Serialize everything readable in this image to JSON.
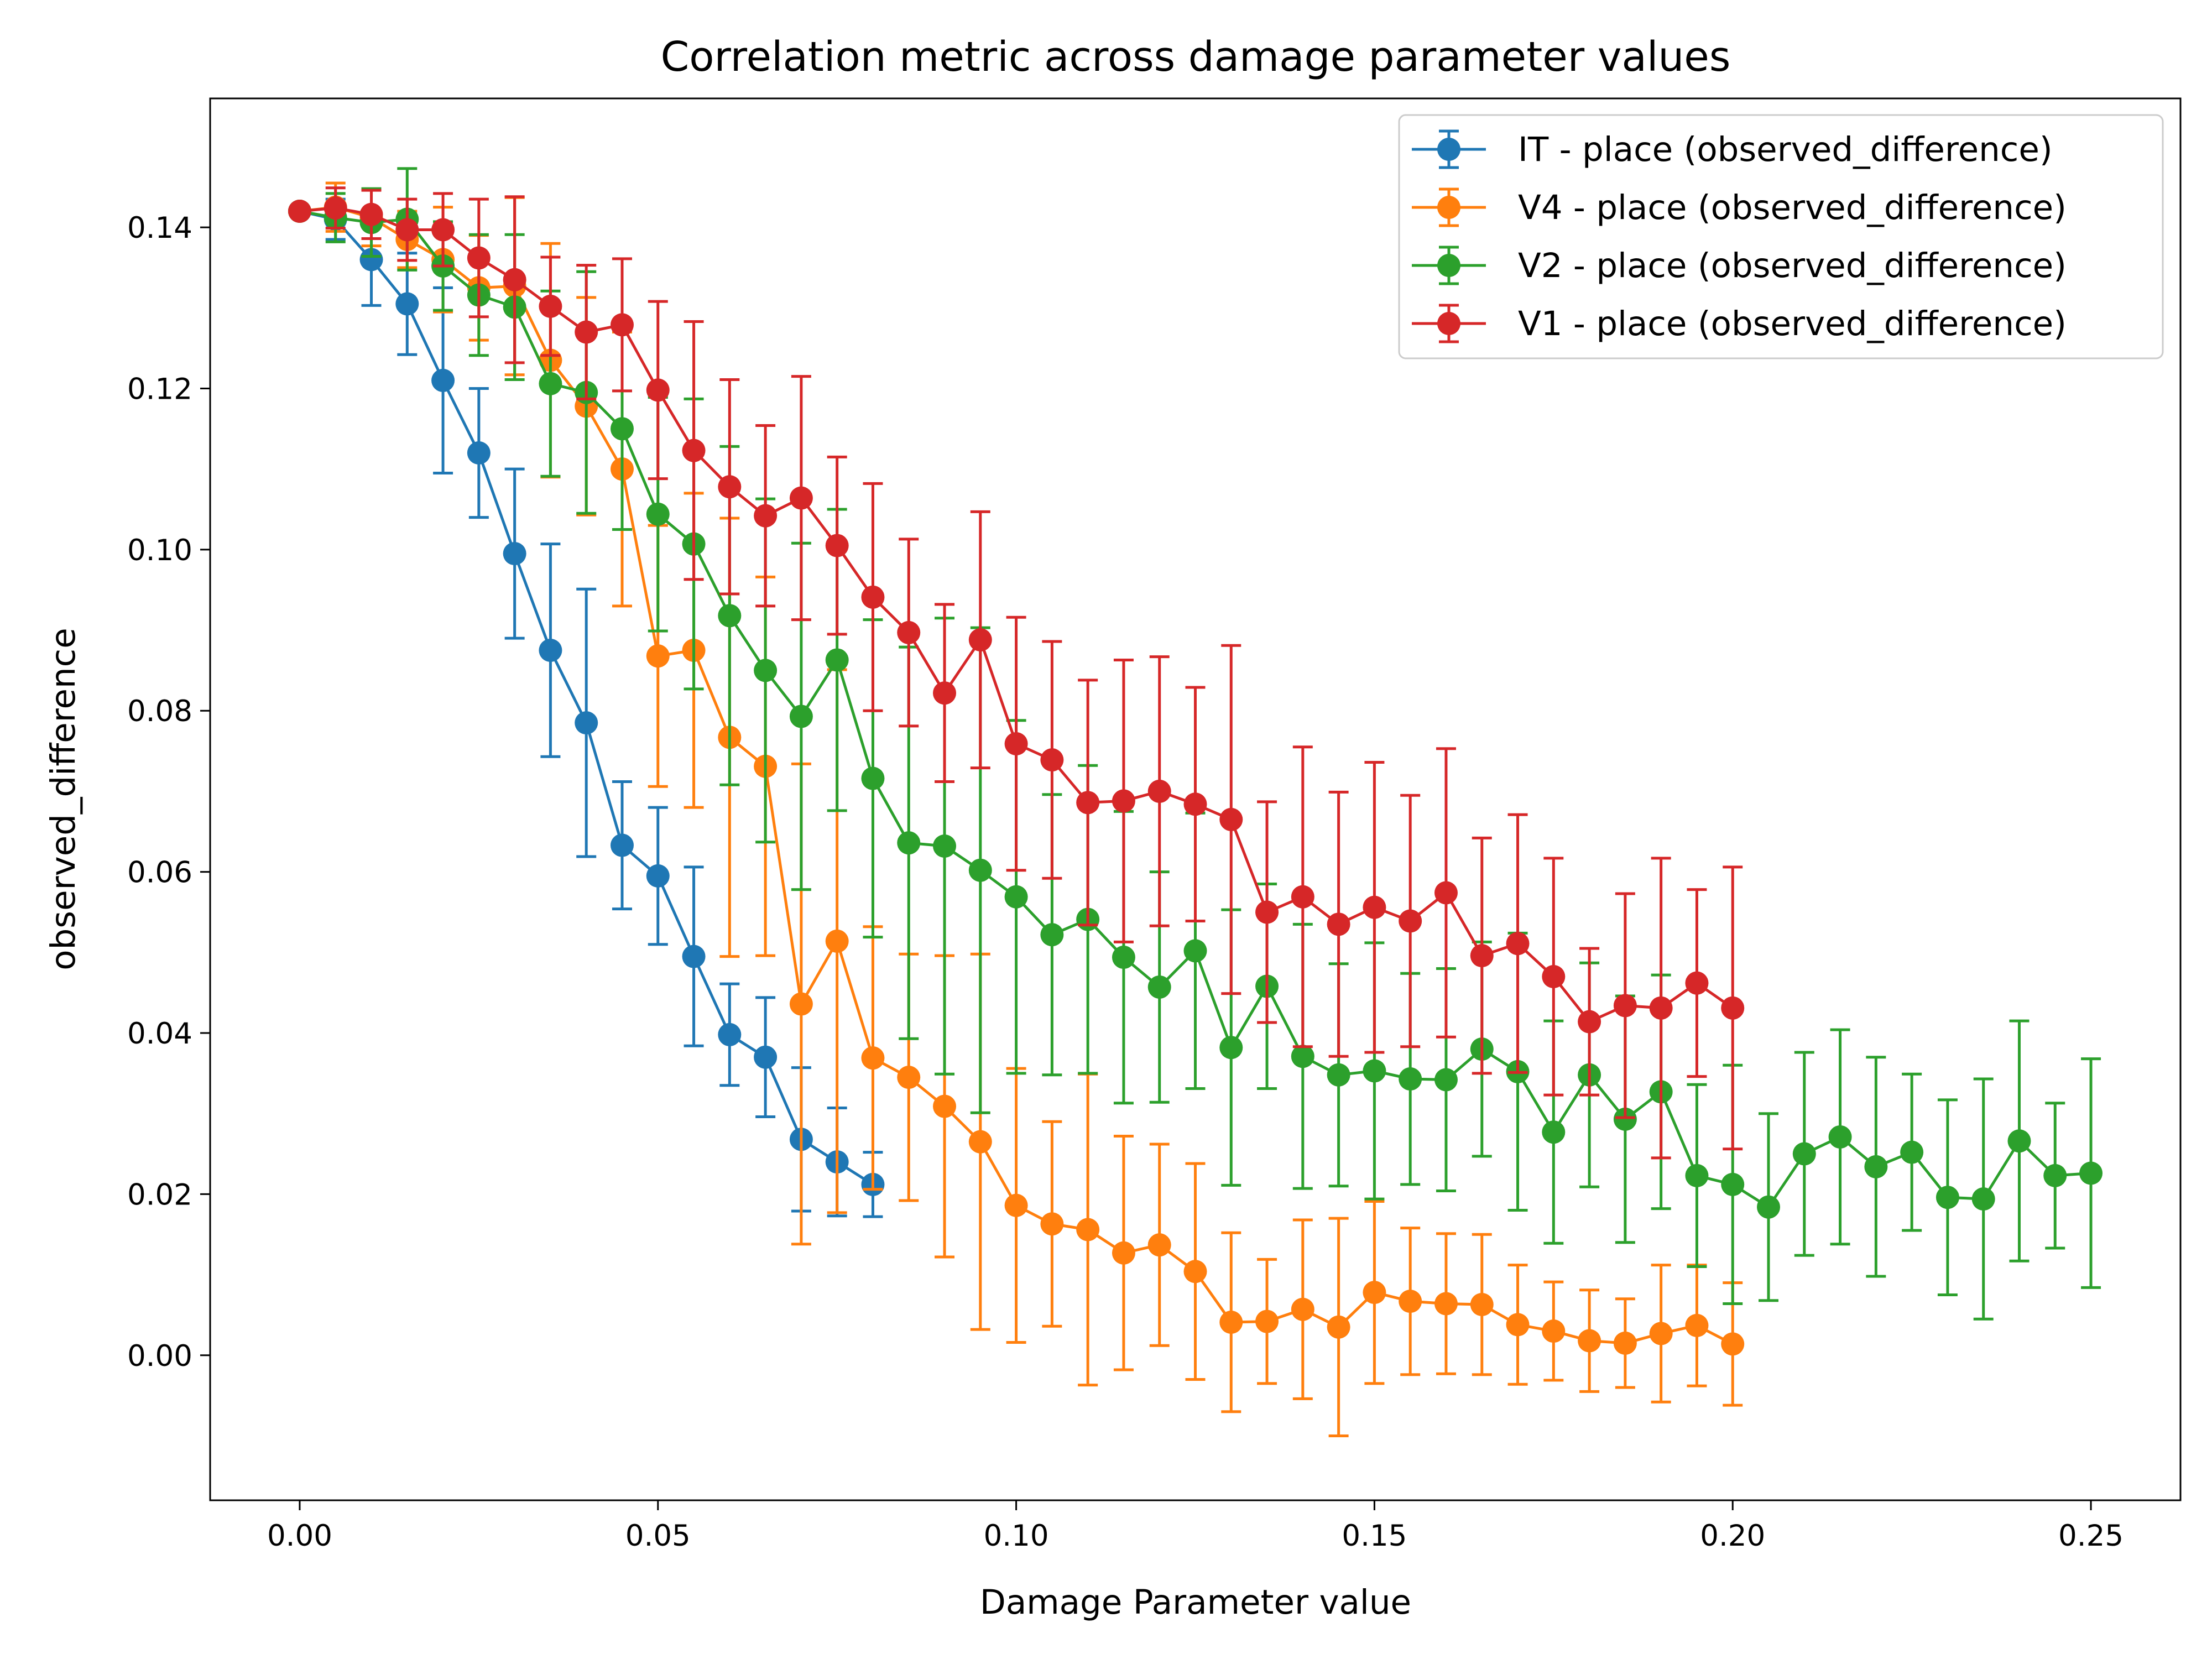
{
  "chart_data": {
    "type": "line",
    "title": "Correlation metric across damage parameter values",
    "xlabel": "Damage Parameter value",
    "ylabel": "observed_difference",
    "xlim": [
      -0.0125,
      0.2625
    ],
    "ylim": [
      -0.018,
      0.156
    ],
    "xticks": [
      0.0,
      0.05,
      0.1,
      0.15,
      0.2,
      0.25
    ],
    "xtick_labels": [
      "0.00",
      "0.05",
      "0.10",
      "0.15",
      "0.20",
      "0.25"
    ],
    "yticks": [
      0.0,
      0.02,
      0.04,
      0.06,
      0.08,
      0.1,
      0.12,
      0.14
    ],
    "ytick_labels": [
      "0.00",
      "0.02",
      "0.04",
      "0.06",
      "0.08",
      "0.10",
      "0.12",
      "0.14"
    ],
    "grid": false,
    "legend_position": "top-right",
    "series": [
      {
        "name": "IT - place (observed_difference)",
        "color": "#1f77b4",
        "x": [
          0.0,
          0.005,
          0.01,
          0.015,
          0.02,
          0.025,
          0.03,
          0.035,
          0.04,
          0.045,
          0.05,
          0.055,
          0.06,
          0.065,
          0.07,
          0.075,
          0.08
        ],
        "y": [
          0.142,
          0.141,
          0.136,
          0.1305,
          0.121,
          0.112,
          0.0995,
          0.0875,
          0.0785,
          0.0633,
          0.0595,
          0.0495,
          0.0398,
          0.037,
          0.0268,
          0.024,
          0.0212
        ],
        "err": [
          0.0,
          0.0025,
          0.0057,
          0.0063,
          0.0115,
          0.008,
          0.0105,
          0.0132,
          0.0166,
          0.0079,
          0.0085,
          0.0111,
          0.0063,
          0.0074,
          0.0089,
          0.0067,
          0.004
        ]
      },
      {
        "name": "V4 - place (observed_difference)",
        "color": "#ff7f0e",
        "x": [
          0.0,
          0.005,
          0.01,
          0.015,
          0.02,
          0.025,
          0.03,
          0.035,
          0.04,
          0.045,
          0.05,
          0.055,
          0.06,
          0.065,
          0.07,
          0.075,
          0.08,
          0.085,
          0.09,
          0.095,
          0.1,
          0.105,
          0.11,
          0.115,
          0.12,
          0.125,
          0.13,
          0.135,
          0.14,
          0.145,
          0.15,
          0.155,
          0.16,
          0.165,
          0.17,
          0.175,
          0.18,
          0.185,
          0.19,
          0.195,
          0.2
        ],
        "y": [
          0.142,
          0.1425,
          0.1412,
          0.1385,
          0.136,
          0.1325,
          0.1327,
          0.1235,
          0.1178,
          0.11,
          0.0868,
          0.0875,
          0.0767,
          0.0731,
          0.0436,
          0.0514,
          0.0369,
          0.0345,
          0.0309,
          0.0265,
          0.0186,
          0.0163,
          0.0156,
          0.0127,
          0.0137,
          0.0104,
          0.0041,
          0.0042,
          0.0057,
          0.0035,
          0.0078,
          0.0067,
          0.0064,
          0.0063,
          0.0038,
          0.003,
          0.0018,
          0.0015,
          0.0027,
          0.0037,
          0.0014
        ],
        "err": [
          0.0,
          0.003,
          0.0035,
          0.0035,
          0.0065,
          0.0065,
          0.011,
          0.0145,
          0.0135,
          0.017,
          0.0162,
          0.0195,
          0.0272,
          0.0235,
          0.0298,
          0.0337,
          0.0163,
          0.0153,
          0.0187,
          0.0233,
          0.017,
          0.0127,
          0.0193,
          0.0145,
          0.0125,
          0.0134,
          0.0111,
          0.0077,
          0.0111,
          0.0135,
          0.0113,
          0.0091,
          0.0087,
          0.0087,
          0.0074,
          0.0061,
          0.0063,
          0.0055,
          0.0085,
          0.0075,
          0.0076
        ]
      },
      {
        "name": "V2 - place (observed_difference)",
        "color": "#2ca02c",
        "x": [
          0.0,
          0.005,
          0.01,
          0.015,
          0.02,
          0.025,
          0.03,
          0.035,
          0.04,
          0.045,
          0.05,
          0.055,
          0.06,
          0.065,
          0.07,
          0.075,
          0.08,
          0.085,
          0.09,
          0.095,
          0.1,
          0.105,
          0.11,
          0.115,
          0.12,
          0.125,
          0.13,
          0.135,
          0.14,
          0.145,
          0.15,
          0.155,
          0.16,
          0.165,
          0.17,
          0.175,
          0.18,
          0.185,
          0.19,
          0.195,
          0.2,
          0.205,
          0.21,
          0.215,
          0.22,
          0.225,
          0.23,
          0.235,
          0.24,
          0.245,
          0.25
        ],
        "y": [
          0.142,
          0.1412,
          0.1406,
          0.141,
          0.1352,
          0.1316,
          0.1301,
          0.1206,
          0.1195,
          0.115,
          0.1044,
          0.1007,
          0.0918,
          0.085,
          0.0793,
          0.0863,
          0.0716,
          0.0636,
          0.0632,
          0.0602,
          0.0569,
          0.0522,
          0.0541,
          0.0494,
          0.0457,
          0.0502,
          0.0382,
          0.0458,
          0.0371,
          0.0348,
          0.0353,
          0.0343,
          0.0342,
          0.038,
          0.0352,
          0.0277,
          0.0348,
          0.0293,
          0.0327,
          0.0223,
          0.0212,
          0.0184,
          0.025,
          0.0271,
          0.0234,
          0.0252,
          0.0196,
          0.0194,
          0.0266,
          0.0223,
          0.0226
        ],
        "err": [
          0.0,
          0.003,
          0.0042,
          0.0063,
          0.0055,
          0.0075,
          0.009,
          0.0115,
          0.015,
          0.0125,
          0.0145,
          0.018,
          0.021,
          0.0213,
          0.0215,
          0.0187,
          0.0197,
          0.0243,
          0.0283,
          0.0301,
          0.0219,
          0.0174,
          0.0191,
          0.0181,
          0.0143,
          0.0171,
          0.0171,
          0.0127,
          0.0164,
          0.0138,
          0.0159,
          0.0131,
          0.0138,
          0.0133,
          0.0172,
          0.0138,
          0.0139,
          0.0153,
          0.0145,
          0.0113,
          0.0148,
          0.0116,
          0.0126,
          0.0133,
          0.0136,
          0.0097,
          0.0121,
          0.0149,
          0.0149,
          0.009,
          0.0142
        ]
      },
      {
        "name": "V1 - place (observed_difference)",
        "color": "#d62728",
        "x": [
          0.0,
          0.005,
          0.01,
          0.015,
          0.02,
          0.025,
          0.03,
          0.035,
          0.04,
          0.045,
          0.05,
          0.055,
          0.06,
          0.065,
          0.07,
          0.075,
          0.08,
          0.085,
          0.09,
          0.095,
          0.1,
          0.105,
          0.11,
          0.115,
          0.12,
          0.125,
          0.13,
          0.135,
          0.14,
          0.145,
          0.15,
          0.155,
          0.16,
          0.165,
          0.17,
          0.175,
          0.18,
          0.185,
          0.19,
          0.195,
          0.2
        ],
        "y": [
          0.142,
          0.1424,
          0.1416,
          0.1397,
          0.1397,
          0.1362,
          0.1335,
          0.1302,
          0.127,
          0.1279,
          0.1198,
          0.1123,
          0.1078,
          0.1042,
          0.1064,
          0.1005,
          0.0941,
          0.0897,
          0.0822,
          0.0888,
          0.0759,
          0.0739,
          0.0686,
          0.0688,
          0.07,
          0.0684,
          0.0665,
          0.055,
          0.0569,
          0.0535,
          0.0556,
          0.0539,
          0.0574,
          0.0496,
          0.0511,
          0.047,
          0.0414,
          0.0434,
          0.0431,
          0.0462,
          0.0431
        ],
        "err": [
          0.0,
          0.0025,
          0.003,
          0.0038,
          0.0045,
          0.0073,
          0.0103,
          0.0061,
          0.0083,
          0.0082,
          0.011,
          0.016,
          0.0133,
          0.0112,
          0.0151,
          0.011,
          0.0141,
          0.0116,
          0.011,
          0.0159,
          0.0157,
          0.0147,
          0.0152,
          0.0175,
          0.0167,
          0.0145,
          0.0216,
          0.0137,
          0.0186,
          0.0164,
          0.018,
          0.0156,
          0.0179,
          0.0146,
          0.016,
          0.0147,
          0.0091,
          0.0139,
          0.0186,
          0.0116,
          0.0175
        ]
      }
    ]
  }
}
